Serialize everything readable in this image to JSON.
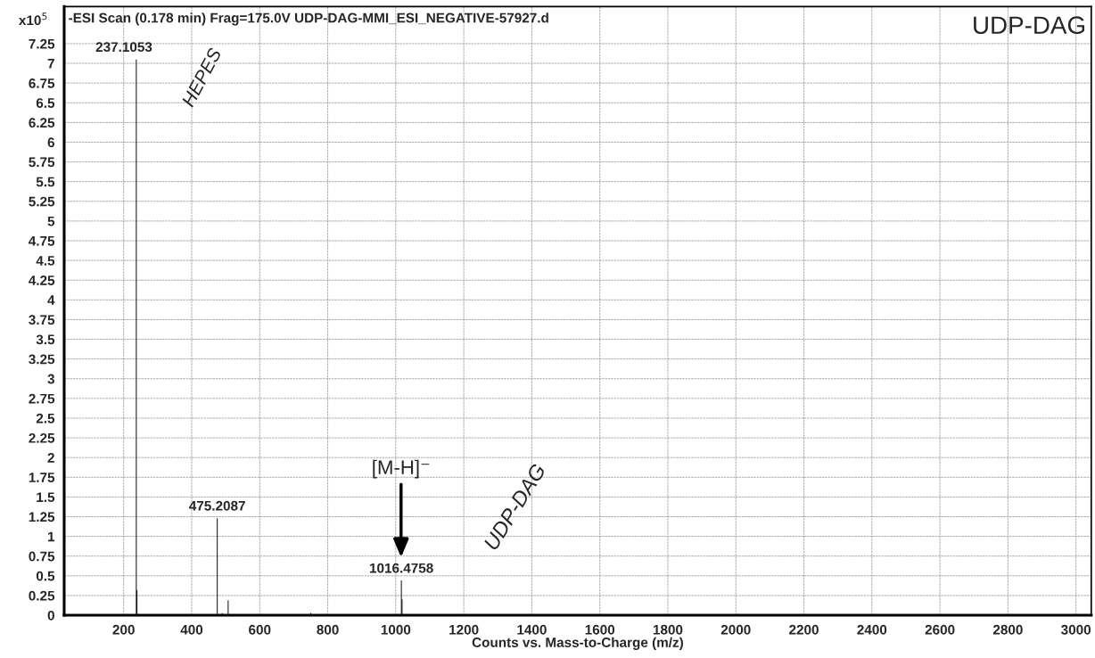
{
  "chart_data": {
    "type": "bar",
    "title": "-ESI Scan (0.178 min) Frag=175.0V UDP-DAG-MMI_ESI_NEGATIVE-57927.d",
    "subtitle": "UDP-DAG",
    "xlabel": "Counts vs. Mass-to-Charge (m/z)",
    "ylabel": "x10$^{5}$",
    "x": [
      237.1053,
      239.1,
      475.2087,
      490,
      507.2,
      750,
      1016.4758,
      1018.5
    ],
    "values": [
      7.05,
      0.32,
      1.23,
      0.03,
      0.19,
      0.03,
      0.44,
      0.2
    ],
    "color": "#000000",
    "xlim": [
      25,
      3045
    ],
    "xticks": [
      200,
      400,
      600,
      800,
      1000,
      1200,
      1400,
      1600,
      1800,
      2000,
      2200,
      2400,
      2600,
      2800,
      3000
    ],
    "ylim": [
      0,
      7.72
    ],
    "yticks": [
      0,
      0.25,
      0.5,
      0.75,
      1,
      1.25,
      1.5,
      1.75,
      2,
      2.25,
      2.5,
      2.75,
      3,
      3.25,
      3.5,
      3.75,
      4,
      4.25,
      4.5,
      4.75,
      5,
      5.25,
      5.5,
      5.75,
      6,
      6.25,
      6.5,
      6.75,
      7,
      7.25
    ],
    "grid": true,
    "annotations": [
      {
        "text": "237.1053",
        "x": 237.1053,
        "y": 7.05
      },
      "HEPES",
      {
        "text": "475.2087",
        "x": 475.2087,
        "y": 1.23
      },
      {
        "text": "1016.4758",
        "x": 1016.4758,
        "y": 0.44
      },
      "[M-H]⁻",
      "UDP-DAG"
    ]
  }
}
